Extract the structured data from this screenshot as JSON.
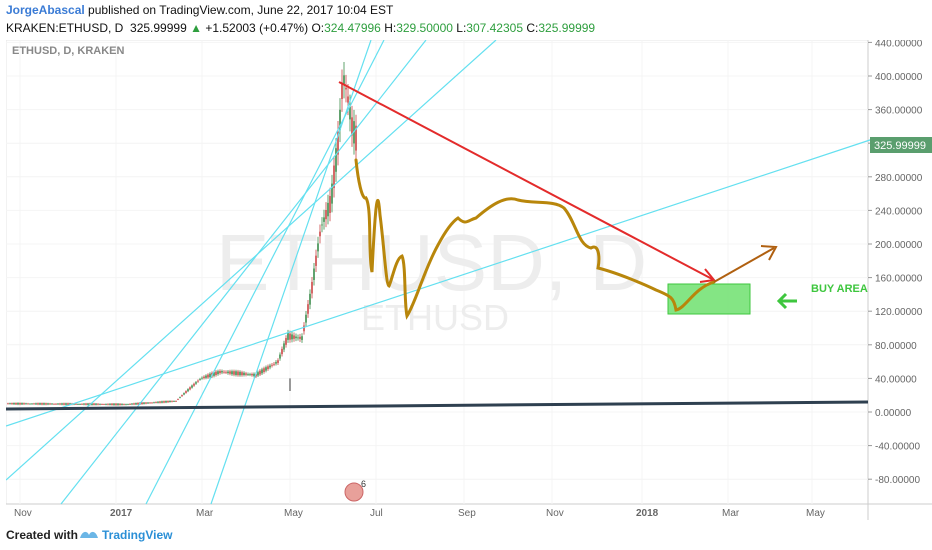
{
  "header": {
    "author": "JorgeAbascal",
    "published_text": "published on TradingView.com, June 22, 2017 10:04 EST",
    "symbol": "KRAKEN:ETHUSD, D",
    "last_price": "325.99999",
    "change": "+1.52003 (+0.47%)",
    "open_label": "O:",
    "open": "324.47996",
    "high_label": "H:",
    "high": "329.50000",
    "low_label": "L:",
    "low": "307.42305",
    "close_label": "C:",
    "close": "325.99999"
  },
  "chart_title": "ETHUSD, D, KRAKEN",
  "watermark": {
    "symbol": "ETHUSD, D",
    "name": "ETHUSD"
  },
  "annotation": {
    "buy_area": "BUY AREA"
  },
  "event_badge": "6",
  "footer": {
    "created_with": "Created with",
    "brand": "TradingView"
  },
  "colors": {
    "trendline": "#e32b2b",
    "projection": "#b8860b",
    "projection_arrow": "#b06010",
    "channel_lines": "#64e0f0",
    "buy_zone": "#6ee06e",
    "buy_text": "#3ec63e",
    "price_tag": "#5a9e6e",
    "candle_up": "#3a8c4a",
    "candle_down": "#c44",
    "baseline": "#2f4050"
  },
  "chart_data": {
    "type": "candlestick",
    "title": "ETHUSD, D, KRAKEN",
    "x_tick_labels": [
      "Nov",
      "2017",
      "Mar",
      "May",
      "Jul",
      "Sep",
      "Nov",
      "2018",
      "Mar",
      "May"
    ],
    "y_tick_labels": [
      "440.00000",
      "400.00000",
      "360.00000",
      "320.00000",
      "280.00000",
      "240.00000",
      "200.00000",
      "160.00000",
      "120.00000",
      "80.00000",
      "40.00000",
      "0.00000",
      "-40.00000",
      "-80.00000"
    ],
    "y_ticks": [
      440,
      400,
      360,
      320,
      280,
      240,
      200,
      160,
      120,
      80,
      40,
      0,
      -40,
      -80
    ],
    "ylim": [
      -100,
      470
    ],
    "current_price": 325.99999,
    "price_history_approx": [
      {
        "date": "2016-11",
        "close": 10
      },
      {
        "date": "2017-01",
        "close": 9
      },
      {
        "date": "2017-02",
        "close": 13
      },
      {
        "date": "2017-03-15",
        "close": 45
      },
      {
        "date": "2017-04",
        "close": 48
      },
      {
        "date": "2017-05",
        "close": 90
      },
      {
        "date": "2017-05-25",
        "close": 220
      },
      {
        "date": "2017-06-12",
        "close": 400
      },
      {
        "date": "2017-06-22",
        "close": 326
      }
    ],
    "buy_area": {
      "low": 120,
      "high": 157,
      "from": "2018-01-25",
      "to": "2018-03-10"
    }
  }
}
